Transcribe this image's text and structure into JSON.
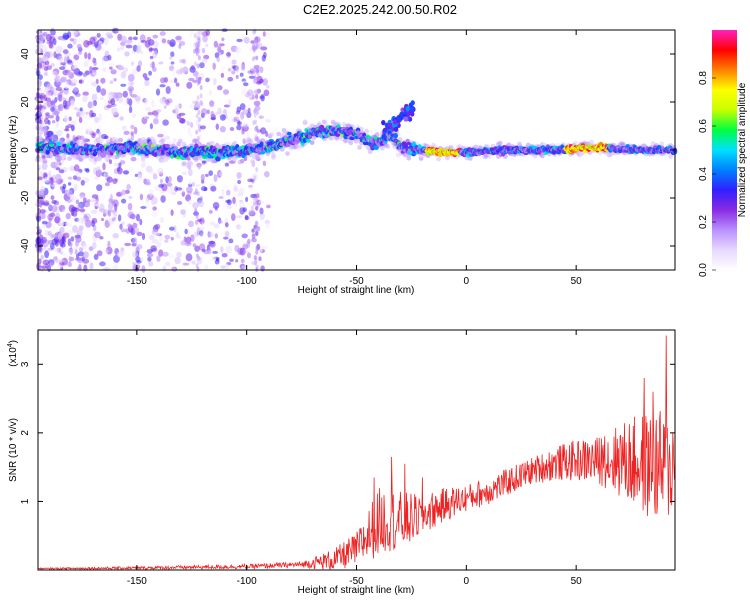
{
  "page": {
    "title": "C2E2.2025.242.00.50.R02"
  },
  "colors": {
    "snr_line": "#ee2222",
    "colormap": [
      "#ffffff",
      "#e8d8ff",
      "#b890ff",
      "#8a2be2",
      "#3020ff",
      "#0080ff",
      "#00e0ff",
      "#00ff40",
      "#c8ff00",
      "#ffff00",
      "#ff8000",
      "#ff0000",
      "#ff20c0"
    ]
  },
  "chart_data": [
    {
      "type": "heatmap",
      "title": "",
      "xlabel": "Height of straight line (km)",
      "ylabel": "Frequency (Hz)",
      "xlim": [
        -195,
        95
      ],
      "ylim": [
        -50,
        50
      ],
      "xticks": [
        -150,
        -100,
        -50,
        0,
        50
      ],
      "yticks": [
        -40,
        -20,
        0,
        20,
        40
      ],
      "colorbar": {
        "label": "Normalized spectral amplitude",
        "range": [
          0,
          1
        ],
        "ticks": [
          0.0,
          0.2,
          0.4,
          0.6,
          0.8
        ]
      },
      "ridge": {
        "x": [
          -195,
          -170,
          -150,
          -130,
          -110,
          -100,
          -90,
          -80,
          -70,
          -60,
          -50,
          -45,
          -40,
          -35,
          -30,
          -25,
          -20,
          -10,
          0,
          20,
          40,
          60,
          80,
          95
        ],
        "freq": [
          1,
          0,
          1,
          -1,
          -1,
          0,
          1,
          4,
          7,
          8,
          7,
          4,
          3,
          6,
          2,
          0,
          0,
          -1,
          -1,
          0,
          0,
          1,
          0,
          0
        ]
      }
    },
    {
      "type": "line",
      "title": "",
      "xlabel": "Height of straight line (km)",
      "ylabel": "SNR (10 * v/v)",
      "y_multiplier": "(x10",
      "y_multiplier_exp": "4",
      "y_multiplier_close": ")",
      "xlim": [
        -195,
        95
      ],
      "ylim": [
        0,
        3.5
      ],
      "xticks": [
        -150,
        -100,
        -50,
        0,
        50
      ],
      "yticks": [
        1,
        2,
        3
      ],
      "trend": {
        "x": [
          -195,
          -150,
          -100,
          -75,
          -60,
          -50,
          -45,
          -40,
          -35,
          -30,
          -20,
          -10,
          0,
          10,
          20,
          30,
          40,
          50,
          60,
          70,
          80,
          85,
          90,
          95
        ],
        "y": [
          0.02,
          0.03,
          0.05,
          0.08,
          0.15,
          0.3,
          0.5,
          0.7,
          0.75,
          0.7,
          0.8,
          0.95,
          1.05,
          1.15,
          1.3,
          1.45,
          1.55,
          1.6,
          1.6,
          1.6,
          1.55,
          1.5,
          1.5,
          1.4
        ]
      },
      "noise": {
        "x": [
          -195,
          -75,
          -50,
          -40,
          -30,
          -20,
          0,
          30,
          60,
          70,
          80,
          90,
          95
        ],
        "amplitude": [
          0.01,
          0.04,
          0.25,
          0.5,
          0.45,
          0.3,
          0.2,
          0.2,
          0.35,
          0.55,
          0.75,
          0.85,
          0.6
        ]
      },
      "peaks": [
        {
          "x": -42,
          "y": 1.35
        },
        {
          "x": -34,
          "y": 1.65
        },
        {
          "x": -28,
          "y": 1.55
        },
        {
          "x": -20,
          "y": 1.35
        },
        {
          "x": 52,
          "y": 1.75
        },
        {
          "x": 63,
          "y": 1.95
        },
        {
          "x": 70,
          "y": 1.95
        },
        {
          "x": 76,
          "y": 2.1
        },
        {
          "x": 81,
          "y": 2.8
        },
        {
          "x": 85,
          "y": 2.6
        },
        {
          "x": 88,
          "y": 2.2
        },
        {
          "x": 91,
          "y": 3.42
        },
        {
          "x": 94,
          "y": 2.0
        }
      ]
    }
  ]
}
